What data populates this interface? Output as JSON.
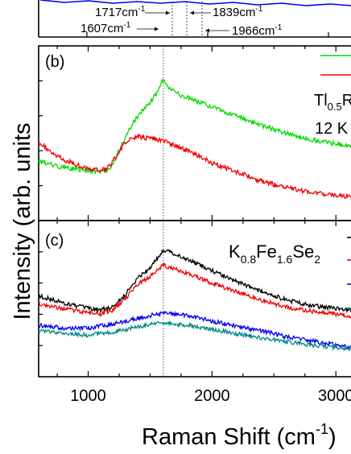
{
  "figure": {
    "ylabel": "Intensity (arb. units",
    "xlabel_main": "Raman Shift (cm",
    "xlabel_sup": "-1",
    "xlabel_close": ")"
  },
  "annotations": {
    "peak_1717": "1717cm",
    "peak_1839": "1839cm",
    "peak_1607": "1607cm",
    "peak_1966": "1966cm",
    "sup": "-1"
  },
  "panel_b": {
    "label": "(b)",
    "sample_main": "Tl",
    "sample_sub": "0.5",
    "sample_tail": "R",
    "temperature": "12 K"
  },
  "panel_c": {
    "label": "(c)",
    "sample_k": "K",
    "sample_k_sub": "0.8",
    "sample_fe": "Fe",
    "sample_fe_sub": "1.6",
    "sample_se": "Se",
    "sample_se_sub": "2"
  },
  "chart_data": [
    {
      "panel": "(b)",
      "type": "line",
      "xlabel": "Raman Shift (cm-1)",
      "ylabel": "Intensity (arb. units",
      "xlim": [
        600,
        3200
      ],
      "ylim": [
        0,
        1
      ],
      "x_ticks": [
        1000,
        2000,
        3000
      ],
      "reference_lines": [
        1607
      ],
      "series": [
        {
          "color": "#00dd00",
          "x": [
            600,
            800,
            1000,
            1100,
            1150,
            1200,
            1250,
            1300,
            1350,
            1400,
            1450,
            1500,
            1550,
            1607,
            1650,
            1700,
            1800,
            1900,
            2000,
            2200,
            2400,
            2600,
            2800,
            3000,
            3200
          ],
          "y": [
            0.32,
            0.28,
            0.26,
            0.25,
            0.26,
            0.3,
            0.39,
            0.48,
            0.55,
            0.61,
            0.66,
            0.7,
            0.75,
            0.85,
            0.8,
            0.76,
            0.73,
            0.7,
            0.67,
            0.61,
            0.55,
            0.5,
            0.46,
            0.43,
            0.41
          ]
        },
        {
          "color": "#ee0000",
          "x": [
            600,
            700,
            800,
            900,
            1000,
            1100,
            1150,
            1200,
            1250,
            1300,
            1350,
            1400,
            1450,
            1500,
            1607,
            1700,
            1800,
            1900,
            2000,
            2200,
            2400,
            2600,
            2800,
            3000,
            3200
          ],
          "y": [
            0.44,
            0.38,
            0.33,
            0.3,
            0.27,
            0.26,
            0.27,
            0.32,
            0.38,
            0.44,
            0.47,
            0.48,
            0.47,
            0.47,
            0.45,
            0.42,
            0.39,
            0.35,
            0.31,
            0.25,
            0.19,
            0.15,
            0.12,
            0.1,
            0.09
          ]
        }
      ]
    },
    {
      "panel": "(c)",
      "type": "line",
      "xlabel": "Raman Shift (cm-1)",
      "ylabel": "Intensity (arb. units",
      "xlim": [
        600,
        3200
      ],
      "ylim": [
        0,
        1
      ],
      "x_ticks": [
        1000,
        2000,
        3000
      ],
      "reference_lines": [
        1607
      ],
      "series": [
        {
          "color": "#000000",
          "x": [
            600,
            800,
            1000,
            1100,
            1200,
            1300,
            1400,
            1500,
            1550,
            1607,
            1700,
            1800,
            2000,
            2200,
            2400,
            2600,
            2800,
            3000,
            3200
          ],
          "y": [
            0.52,
            0.47,
            0.43,
            0.42,
            0.44,
            0.53,
            0.65,
            0.72,
            0.78,
            0.85,
            0.82,
            0.78,
            0.7,
            0.62,
            0.55,
            0.49,
            0.45,
            0.43,
            0.41
          ]
        },
        {
          "color": "#ee0000",
          "x": [
            600,
            800,
            1000,
            1100,
            1200,
            1300,
            1400,
            1500,
            1607,
            1700,
            1800,
            2000,
            2200,
            2400,
            2600,
            2800,
            3000,
            3200
          ],
          "y": [
            0.46,
            0.43,
            0.4,
            0.39,
            0.42,
            0.5,
            0.6,
            0.66,
            0.74,
            0.71,
            0.68,
            0.61,
            0.55,
            0.49,
            0.44,
            0.41,
            0.39,
            0.37
          ]
        },
        {
          "color": "#0000ee",
          "x": [
            600,
            800,
            1000,
            1200,
            1400,
            1607,
            1800,
            2000,
            2200,
            2400,
            2600,
            2800,
            3000,
            3200
          ],
          "y": [
            0.31,
            0.29,
            0.29,
            0.32,
            0.36,
            0.4,
            0.38,
            0.34,
            0.3,
            0.27,
            0.23,
            0.2,
            0.17,
            0.14
          ]
        },
        {
          "color": "#008888",
          "x": [
            600,
            800,
            1000,
            1200,
            1400,
            1607,
            1800,
            2000,
            2200,
            2400,
            2600,
            2800,
            3000,
            3200
          ],
          "y": [
            0.27,
            0.25,
            0.24,
            0.26,
            0.3,
            0.33,
            0.31,
            0.28,
            0.25,
            0.22,
            0.19,
            0.17,
            0.15,
            0.13
          ]
        }
      ]
    }
  ]
}
